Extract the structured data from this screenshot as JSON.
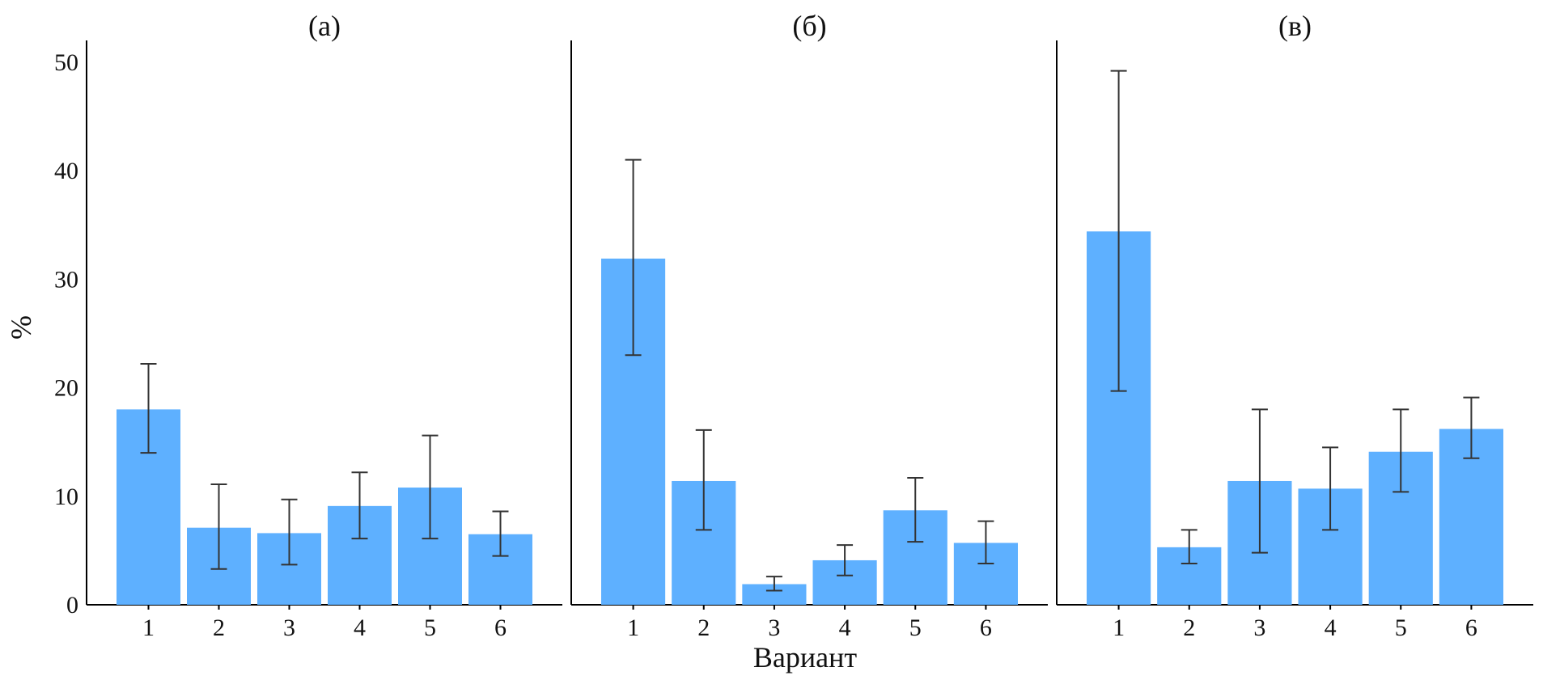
{
  "chart_data": {
    "type": "bar",
    "ylabel": "%",
    "xlabel": "Вариант",
    "ylim": [
      0,
      52
    ],
    "yticks": [
      0,
      10,
      20,
      30,
      40,
      50
    ],
    "bar_color": "#5eb0ff",
    "error_color": "#333333",
    "categories": [
      "1",
      "2",
      "3",
      "4",
      "5",
      "6"
    ],
    "panels": [
      {
        "title": "(а)",
        "values": [
          18.0,
          7.1,
          6.6,
          9.1,
          10.8,
          6.5
        ],
        "err_low": [
          14.0,
          3.3,
          3.7,
          6.1,
          6.1,
          4.5
        ],
        "err_high": [
          22.2,
          11.1,
          9.7,
          12.2,
          15.6,
          8.6
        ]
      },
      {
        "title": "(б)",
        "values": [
          31.9,
          11.4,
          1.9,
          4.1,
          8.7,
          5.7
        ],
        "err_low": [
          23.0,
          6.9,
          1.3,
          2.7,
          5.8,
          3.8
        ],
        "err_high": [
          41.0,
          16.1,
          2.6,
          5.5,
          11.7,
          7.7
        ]
      },
      {
        "title": "(в)",
        "values": [
          34.4,
          5.3,
          11.4,
          10.7,
          14.1,
          16.2
        ],
        "err_low": [
          19.7,
          3.8,
          4.8,
          6.9,
          10.4,
          13.5
        ],
        "err_high": [
          49.2,
          6.9,
          18.0,
          14.5,
          18.0,
          19.1
        ]
      }
    ]
  }
}
